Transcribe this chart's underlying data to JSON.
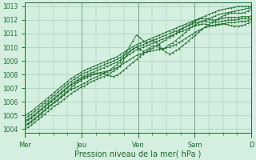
{
  "bg_color": "#d4eee0",
  "grid_color": "#9ec4b0",
  "line_color": "#1a6b2a",
  "xlabel": "Pression niveau de la mer( hPa )",
  "ylim": [
    1004,
    1013
  ],
  "yticks": [
    1004,
    1005,
    1006,
    1007,
    1008,
    1009,
    1010,
    1011,
    1012,
    1013
  ],
  "xtick_labels": [
    "Mer",
    "Jeu",
    "Ven",
    "Sam",
    "D"
  ],
  "xtick_positions": [
    0,
    24,
    48,
    72,
    96
  ],
  "total_hours": 96,
  "series": [
    [
      1004.2,
      1004.35,
      1004.5,
      1004.7,
      1004.9,
      1005.1,
      1005.35,
      1005.55,
      1005.75,
      1005.95,
      1006.1,
      1006.3,
      1006.5,
      1006.7,
      1006.9,
      1007.0,
      1007.1,
      1007.25,
      1007.35,
      1007.5,
      1007.65,
      1007.75,
      1007.85,
      1007.95,
      1008.05,
      1008.0,
      1007.9,
      1007.85,
      1007.95,
      1008.1,
      1008.3,
      1008.5,
      1008.7,
      1008.9,
      1009.1,
      1009.3,
      1009.5,
      1009.65,
      1009.8,
      1009.95,
      1010.1,
      1010.25,
      1010.4,
      1010.55,
      1010.7,
      1010.85,
      1011.0,
      1011.2,
      1011.35,
      1011.5,
      1011.65,
      1011.8,
      1011.95,
      1012.1,
      1012.2,
      1012.3,
      1012.4,
      1012.5,
      1012.6,
      1012.7,
      1012.75,
      1012.8,
      1012.85,
      1012.9,
      1012.95,
      1013.0,
      1013.0,
      1013.0,
      1013.0,
      1013.0
    ],
    [
      1004.0,
      1004.15,
      1004.3,
      1004.5,
      1004.7,
      1004.9,
      1005.1,
      1005.3,
      1005.5,
      1005.7,
      1005.85,
      1006.0,
      1006.2,
      1006.4,
      1006.6,
      1006.75,
      1006.9,
      1007.05,
      1007.15,
      1007.3,
      1007.45,
      1007.55,
      1007.65,
      1007.75,
      1007.85,
      1007.95,
      1008.1,
      1008.25,
      1008.4,
      1008.6,
      1009.0,
      1009.4,
      1009.7,
      1009.9,
      1010.0,
      1009.85,
      1009.7,
      1009.8,
      1009.95,
      1010.1,
      1010.1,
      1009.95,
      1009.85,
      1010.0,
      1010.2,
      1010.3,
      1010.5,
      1010.7,
      1010.9,
      1011.1,
      1011.3,
      1011.5,
      1011.65,
      1011.8,
      1011.9,
      1012.0,
      1012.1,
      1012.2,
      1012.3,
      1012.4,
      1012.45,
      1012.5,
      1012.55,
      1012.6,
      1012.65,
      1012.7,
      1012.75,
      1012.8,
      1012.85,
      1012.9
    ],
    [
      1004.5,
      1004.65,
      1004.8,
      1005.0,
      1005.2,
      1005.4,
      1005.6,
      1005.8,
      1006.0,
      1006.2,
      1006.4,
      1006.6,
      1006.8,
      1007.0,
      1007.2,
      1007.35,
      1007.5,
      1007.65,
      1007.8,
      1007.9,
      1008.0,
      1008.05,
      1008.1,
      1008.15,
      1008.2,
      1008.25,
      1008.3,
      1008.4,
      1008.5,
      1008.65,
      1008.8,
      1008.95,
      1009.1,
      1009.25,
      1009.4,
      1009.5,
      1009.6,
      1009.65,
      1009.7,
      1009.75,
      1009.8,
      1009.85,
      1009.9,
      1009.95,
      1010.0,
      1010.1,
      1010.2,
      1010.35,
      1010.5,
      1010.65,
      1010.8,
      1010.95,
      1011.1,
      1011.25,
      1011.35,
      1011.45,
      1011.5,
      1011.6,
      1011.65,
      1011.7,
      1011.7,
      1011.7,
      1011.65,
      1011.6,
      1011.55,
      1011.55,
      1011.6,
      1011.65,
      1011.75,
      1011.85
    ],
    [
      1004.8,
      1004.95,
      1005.1,
      1005.3,
      1005.5,
      1005.7,
      1005.9,
      1006.1,
      1006.3,
      1006.5,
      1006.7,
      1006.9,
      1007.1,
      1007.3,
      1007.5,
      1007.65,
      1007.8,
      1007.95,
      1008.1,
      1008.2,
      1008.3,
      1008.4,
      1008.5,
      1008.6,
      1008.7,
      1008.8,
      1008.9,
      1009.0,
      1009.1,
      1009.25,
      1009.4,
      1009.55,
      1009.7,
      1009.85,
      1010.0,
      1010.1,
      1010.2,
      1010.3,
      1010.4,
      1010.5,
      1010.6,
      1010.7,
      1010.8,
      1010.9,
      1011.0,
      1011.1,
      1011.2,
      1011.3,
      1011.4,
      1011.5,
      1011.6,
      1011.7,
      1011.8,
      1011.85,
      1011.9,
      1011.9,
      1011.85,
      1011.8,
      1011.8,
      1011.85,
      1011.9,
      1011.95,
      1012.0,
      1012.0,
      1012.0,
      1012.05,
      1012.1,
      1012.1,
      1012.1,
      1012.15
    ],
    [
      1005.0,
      1005.15,
      1005.3,
      1005.5,
      1005.7,
      1005.9,
      1006.1,
      1006.3,
      1006.5,
      1006.7,
      1006.9,
      1007.1,
      1007.3,
      1007.5,
      1007.7,
      1007.85,
      1008.0,
      1008.15,
      1008.3,
      1008.4,
      1008.5,
      1008.6,
      1008.7,
      1008.8,
      1008.9,
      1009.0,
      1009.1,
      1009.2,
      1009.3,
      1009.45,
      1009.6,
      1009.75,
      1009.9,
      1010.05,
      1010.2,
      1010.3,
      1010.4,
      1010.5,
      1010.6,
      1010.7,
      1010.8,
      1010.9,
      1011.0,
      1011.1,
      1011.2,
      1011.3,
      1011.4,
      1011.5,
      1011.6,
      1011.7,
      1011.8,
      1011.9,
      1012.0,
      1012.05,
      1012.1,
      1012.1,
      1012.05,
      1012.0,
      1012.0,
      1012.05,
      1012.1,
      1012.15,
      1012.2,
      1012.2,
      1012.2,
      1012.2,
      1012.25,
      1012.25,
      1012.25,
      1012.3
    ],
    [
      1004.3,
      1004.45,
      1004.6,
      1004.8,
      1005.0,
      1005.2,
      1005.4,
      1005.6,
      1005.8,
      1006.0,
      1006.2,
      1006.4,
      1006.6,
      1006.8,
      1007.0,
      1007.2,
      1007.4,
      1007.55,
      1007.7,
      1007.8,
      1007.9,
      1008.0,
      1008.05,
      1008.1,
      1008.1,
      1008.2,
      1008.35,
      1008.55,
      1008.7,
      1008.9,
      1009.3,
      1009.7,
      1010.1,
      1010.5,
      1010.9,
      1010.7,
      1010.5,
      1010.3,
      1010.4,
      1010.55,
      1010.35,
      1010.1,
      1009.85,
      1009.65,
      1009.5,
      1009.6,
      1009.75,
      1009.9,
      1010.1,
      1010.3,
      1010.5,
      1010.7,
      1010.9,
      1011.1,
      1011.3,
      1011.5,
      1011.65,
      1011.8,
      1011.95,
      1012.1,
      1012.25,
      1012.35,
      1012.45,
      1012.5,
      1012.5,
      1012.5,
      1012.5,
      1012.55,
      1012.65,
      1012.75
    ],
    [
      1004.6,
      1004.75,
      1004.9,
      1005.1,
      1005.3,
      1005.5,
      1005.7,
      1005.9,
      1006.1,
      1006.3,
      1006.5,
      1006.7,
      1006.9,
      1007.1,
      1007.3,
      1007.45,
      1007.6,
      1007.75,
      1007.9,
      1008.0,
      1008.1,
      1008.2,
      1008.3,
      1008.4,
      1008.5,
      1008.6,
      1008.7,
      1008.8,
      1008.9,
      1009.05,
      1009.2,
      1009.35,
      1009.5,
      1009.65,
      1009.8,
      1009.9,
      1010.0,
      1010.1,
      1010.2,
      1010.3,
      1010.4,
      1010.5,
      1010.6,
      1010.7,
      1010.8,
      1010.9,
      1011.0,
      1011.1,
      1011.2,
      1011.3,
      1011.4,
      1011.5,
      1011.6,
      1011.65,
      1011.7,
      1011.7,
      1011.65,
      1011.6,
      1011.6,
      1011.65,
      1011.7,
      1011.75,
      1011.8,
      1011.8,
      1011.8,
      1011.85,
      1011.9,
      1011.9,
      1011.95,
      1012.05
    ]
  ]
}
